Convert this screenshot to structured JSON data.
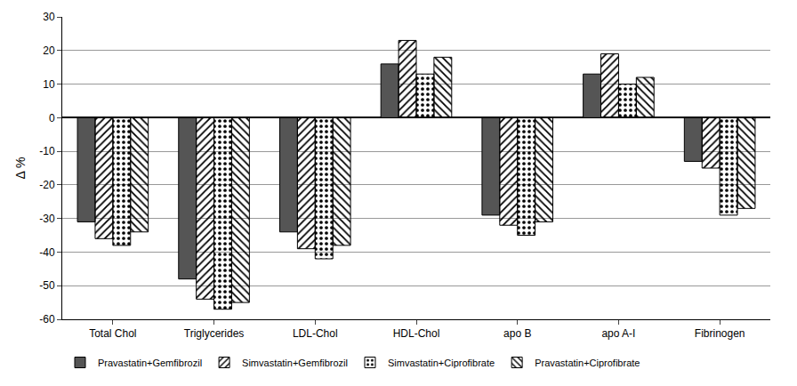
{
  "chart_data": {
    "type": "bar",
    "y_label": "Δ %",
    "categories": [
      "Total Chol",
      "Triglycerides",
      "LDL-Chol",
      "HDL-Chol",
      "apo B",
      "apo A-I",
      "Fibrinogen"
    ],
    "series": [
      {
        "name": "Pravastatin+Gemfibrozil",
        "color": "#555555",
        "values": [
          -31,
          -48,
          -34,
          16,
          -29,
          13,
          -13
        ]
      },
      {
        "name": "Simvastatin+Gemfibrozil",
        "color": "#888888",
        "values": [
          -36,
          -54,
          -39,
          23,
          -32,
          19,
          -15
        ]
      },
      {
        "name": "Simvastatin+Ciprofibrate",
        "color": "#ffffff",
        "values": [
          -38,
          -57,
          -42,
          13,
          -35,
          10,
          -29
        ]
      },
      {
        "name": "Pravastatin+Ciprofibrate",
        "color": "#aaaaaa",
        "values": [
          -34,
          -55,
          -38,
          18,
          -31,
          12,
          -27
        ]
      }
    ],
    "ylim": [
      -60,
      30
    ],
    "yticks": [
      -60,
      -50,
      -40,
      -30,
      -20,
      -10,
      0,
      10,
      20,
      30
    ],
    "grid": true,
    "legend": "bottom"
  }
}
